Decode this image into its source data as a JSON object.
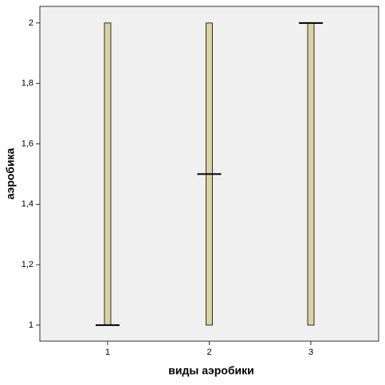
{
  "chart_data": {
    "type": "boxplot",
    "x_label": "виды аэробики",
    "y_label": "аэробика",
    "categories": [
      "1",
      "2",
      "3"
    ],
    "boxes": [
      {
        "q1": 1,
        "median": 1,
        "q3": 2
      },
      {
        "q1": 1,
        "median": 1.5,
        "q3": 2
      },
      {
        "q1": 1,
        "median": 2,
        "q3": 2
      }
    ],
    "color": "#d9d3a3",
    "ylim": [
      0.947,
      2.055
    ],
    "yticks": [
      1,
      {
        "value": 1.2,
        "label": "1,2"
      },
      {
        "value": 1.4,
        "label": "1,4"
      },
      {
        "value": 1.6,
        "label": "1,6"
      },
      {
        "value": 1.8,
        "label": "1,8"
      },
      2
    ]
  }
}
